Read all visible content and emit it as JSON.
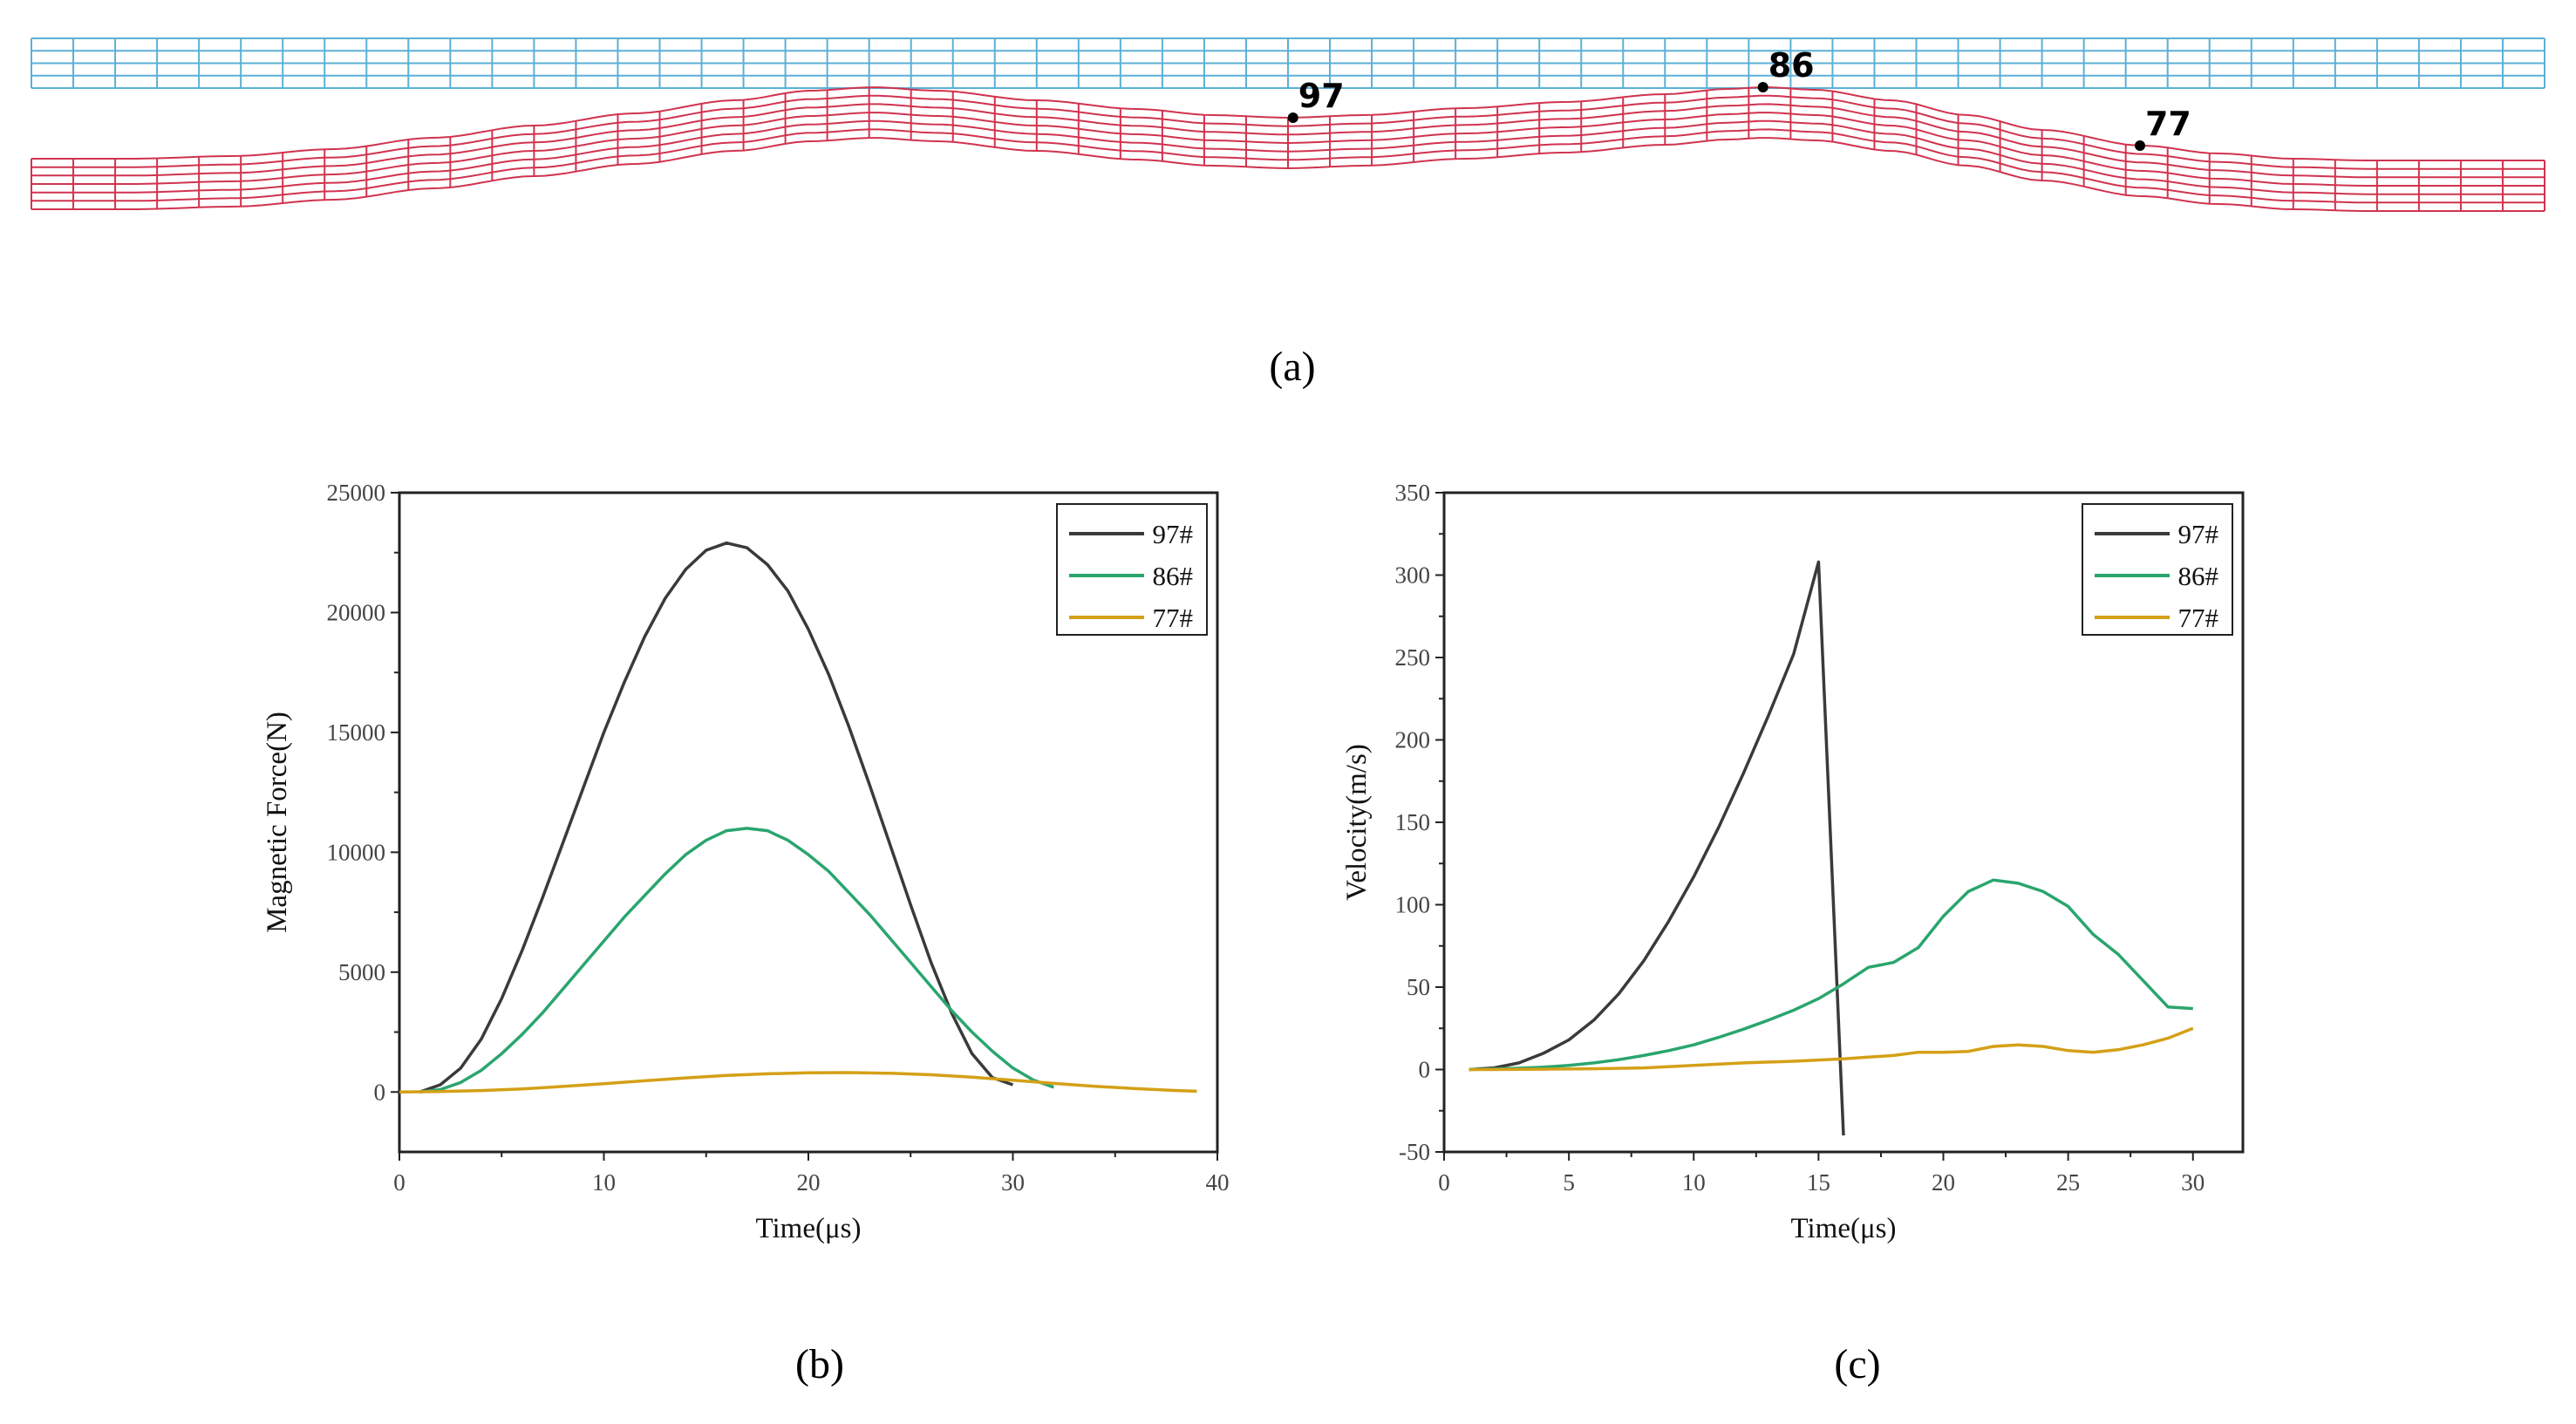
{
  "captions": {
    "a": "(a)",
    "b": "(b)",
    "c": "(c)"
  },
  "mesh": {
    "upper_color": "#5bb0d6",
    "lower_color": "#d0334f",
    "nodes": [
      {
        "label": "97",
        "position": 0.502
      },
      {
        "label": "86",
        "position": 0.689
      },
      {
        "label": "77",
        "position": 0.839
      }
    ]
  },
  "colors": {
    "97#": "#3a3a3a",
    "86#": "#2aa56e",
    "77#": "#d4a017"
  },
  "chart_data": [
    {
      "type": "line",
      "title": "",
      "xlabel": "Time(μs)",
      "ylabel": "Magnetic Force(N)",
      "xlim": [
        0,
        40
      ],
      "ylim": [
        -2500,
        25000
      ],
      "xticks": [
        0,
        10,
        20,
        30,
        40
      ],
      "yticks": [
        0,
        5000,
        10000,
        15000,
        20000,
        25000
      ],
      "legend_position": "top-right",
      "series": [
        {
          "name": "97#",
          "color": "#3a3a3a",
          "x": [
            1,
            2,
            3,
            4,
            5,
            6,
            7,
            8,
            9,
            10,
            11,
            12,
            13,
            14,
            15,
            16,
            17,
            18,
            19,
            20,
            21,
            22,
            23,
            24,
            25,
            26,
            27,
            28,
            29,
            30
          ],
          "y": [
            0,
            300,
            1000,
            2200,
            3900,
            5900,
            8100,
            10400,
            12700,
            15000,
            17100,
            19000,
            20600,
            21800,
            22600,
            22900,
            22700,
            22000,
            20900,
            19300,
            17400,
            15200,
            12800,
            10300,
            7800,
            5400,
            3300,
            1600,
            600,
            300
          ]
        },
        {
          "name": "86#",
          "color": "#2aa56e",
          "x": [
            1,
            2,
            3,
            4,
            5,
            6,
            7,
            8,
            9,
            10,
            11,
            12,
            13,
            14,
            15,
            16,
            17,
            18,
            19,
            20,
            21,
            22,
            23,
            24,
            25,
            26,
            27,
            28,
            29,
            30,
            31,
            32
          ],
          "y": [
            0,
            100,
            400,
            900,
            1600,
            2400,
            3300,
            4300,
            5300,
            6300,
            7300,
            8200,
            9100,
            9900,
            10500,
            10900,
            11000,
            10900,
            10500,
            9900,
            9200,
            8300,
            7400,
            6400,
            5400,
            4400,
            3400,
            2500,
            1700,
            1000,
            500,
            200
          ]
        },
        {
          "name": "77#",
          "color": "#d4a017",
          "x": [
            0,
            2,
            4,
            6,
            8,
            10,
            12,
            14,
            16,
            18,
            20,
            22,
            24,
            26,
            28,
            30,
            32,
            34,
            36,
            38,
            39
          ],
          "y": [
            0,
            20,
            60,
            130,
            230,
            350,
            470,
            590,
            690,
            760,
            800,
            810,
            780,
            720,
            620,
            490,
            360,
            240,
            140,
            60,
            30
          ]
        }
      ]
    },
    {
      "type": "line",
      "title": "",
      "xlabel": "Time(μs)",
      "ylabel": "Velocity(m/s)",
      "xlim": [
        0,
        32
      ],
      "ylim": [
        -50,
        350
      ],
      "xticks": [
        0,
        5,
        10,
        15,
        20,
        25,
        30
      ],
      "yticks": [
        -50,
        0,
        50,
        100,
        150,
        200,
        250,
        300,
        350
      ],
      "legend_position": "top-right",
      "series": [
        {
          "name": "97#",
          "color": "#3a3a3a",
          "x": [
            1,
            2,
            3,
            4,
            5,
            6,
            7,
            8,
            9,
            10,
            11,
            12,
            13,
            14,
            15,
            16
          ],
          "y": [
            0,
            1,
            4,
            10,
            18,
            30,
            46,
            66,
            90,
            117,
            147,
            180,
            215,
            252,
            308,
            -40
          ]
        },
        {
          "name": "86#",
          "color": "#2aa56e",
          "x": [
            1,
            2,
            3,
            4,
            5,
            6,
            7,
            8,
            9,
            10,
            11,
            12,
            13,
            14,
            15,
            16,
            17,
            18,
            19,
            20,
            21,
            22,
            23,
            24,
            25,
            26,
            27,
            28,
            29,
            30
          ],
          "y": [
            0,
            0.3,
            0.8,
            1.5,
            2.5,
            4,
            6,
            8.5,
            11.5,
            15,
            19.5,
            24.5,
            30,
            36,
            43,
            52,
            62,
            65,
            74,
            93,
            108,
            115,
            113,
            108,
            99,
            82,
            70,
            54,
            38,
            37
          ]
        },
        {
          "name": "77#",
          "color": "#d4a017",
          "x": [
            1,
            2,
            4,
            6,
            8,
            10,
            12,
            14,
            16,
            17,
            18,
            19,
            20,
            21,
            22,
            23,
            24,
            25,
            26,
            27,
            28,
            29,
            30
          ],
          "y": [
            0,
            0,
            0.2,
            0.5,
            1,
            2.5,
            4,
            5,
            6.5,
            7.5,
            8.5,
            10.5,
            10.5,
            11,
            14,
            15,
            14,
            11.5,
            10.5,
            12,
            15,
            19,
            25
          ]
        }
      ]
    }
  ]
}
